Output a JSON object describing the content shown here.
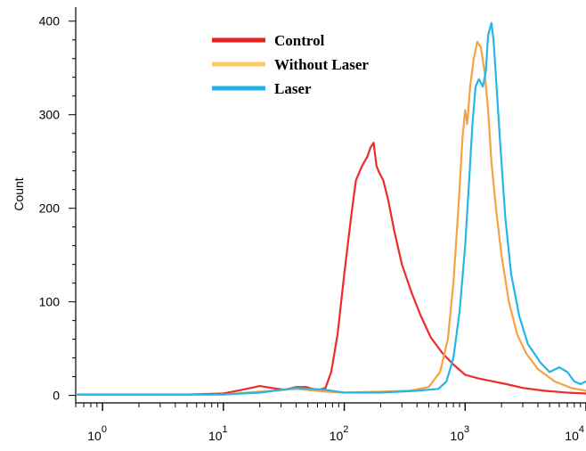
{
  "chart_data": {
    "type": "line",
    "title": "",
    "xlabel": "",
    "ylabel": "Count",
    "x_scale": "log",
    "xlim": [
      0.6,
      10000
    ],
    "ylim": [
      -8,
      415
    ],
    "y_ticks": [
      "0",
      "100",
      "200",
      "300",
      "400"
    ],
    "y_tick_values": [
      0,
      100,
      200,
      300,
      400
    ],
    "x_ticks": [
      {
        "value": 1,
        "base": "10",
        "exp": "0"
      },
      {
        "value": 10,
        "base": "10",
        "exp": "1"
      },
      {
        "value": 100,
        "base": "10",
        "exp": "2"
      },
      {
        "value": 1000,
        "base": "10",
        "exp": "3"
      },
      {
        "value": 10000,
        "base": "10",
        "exp": "4"
      }
    ],
    "grid": false,
    "legend_position": "top-center",
    "series": [
      {
        "name": "Control",
        "color": "#ee2a2a",
        "points": [
          [
            0.6,
            1
          ],
          [
            5,
            1
          ],
          [
            10,
            2
          ],
          [
            13,
            5
          ],
          [
            17,
            8
          ],
          [
            20,
            10
          ],
          [
            25,
            8
          ],
          [
            32,
            6
          ],
          [
            40,
            9
          ],
          [
            48,
            9
          ],
          [
            55,
            7
          ],
          [
            62,
            6
          ],
          [
            70,
            8
          ],
          [
            78,
            25
          ],
          [
            88,
            65
          ],
          [
            100,
            130
          ],
          [
            115,
            195
          ],
          [
            125,
            230
          ],
          [
            140,
            245
          ],
          [
            155,
            255
          ],
          [
            165,
            265
          ],
          [
            175,
            270
          ],
          [
            185,
            245
          ],
          [
            195,
            238
          ],
          [
            210,
            230
          ],
          [
            230,
            210
          ],
          [
            260,
            175
          ],
          [
            300,
            140
          ],
          [
            360,
            110
          ],
          [
            430,
            85
          ],
          [
            520,
            62
          ],
          [
            650,
            45
          ],
          [
            800,
            33
          ],
          [
            1000,
            22
          ],
          [
            1300,
            18
          ],
          [
            1700,
            15
          ],
          [
            2200,
            12
          ],
          [
            3000,
            8
          ],
          [
            4500,
            5
          ],
          [
            7000,
            3
          ],
          [
            10000,
            2
          ]
        ]
      },
      {
        "name": "Without Laser",
        "color": "#f7a240",
        "points": [
          [
            0.6,
            1
          ],
          [
            10,
            1
          ],
          [
            20,
            4
          ],
          [
            40,
            7
          ],
          [
            70,
            4
          ],
          [
            100,
            3
          ],
          [
            200,
            4
          ],
          [
            350,
            5
          ],
          [
            500,
            9
          ],
          [
            620,
            25
          ],
          [
            720,
            60
          ],
          [
            800,
            120
          ],
          [
            880,
            200
          ],
          [
            950,
            275
          ],
          [
            1000,
            305
          ],
          [
            1040,
            290
          ],
          [
            1100,
            330
          ],
          [
            1180,
            360
          ],
          [
            1260,
            378
          ],
          [
            1350,
            372
          ],
          [
            1450,
            345
          ],
          [
            1550,
            305
          ],
          [
            1650,
            250
          ],
          [
            1800,
            200
          ],
          [
            2000,
            150
          ],
          [
            2300,
            100
          ],
          [
            2700,
            65
          ],
          [
            3200,
            45
          ],
          [
            4000,
            28
          ],
          [
            5500,
            15
          ],
          [
            7500,
            8
          ],
          [
            10000,
            5
          ]
        ]
      },
      {
        "name": "Laser",
        "color": "#23b6e6",
        "points": [
          [
            0.6,
            1
          ],
          [
            10,
            1
          ],
          [
            20,
            3
          ],
          [
            40,
            8
          ],
          [
            70,
            6
          ],
          [
            100,
            3
          ],
          [
            200,
            3
          ],
          [
            400,
            5
          ],
          [
            600,
            7
          ],
          [
            700,
            15
          ],
          [
            800,
            40
          ],
          [
            900,
            90
          ],
          [
            1000,
            160
          ],
          [
            1080,
            230
          ],
          [
            1150,
            290
          ],
          [
            1220,
            330
          ],
          [
            1300,
            338
          ],
          [
            1400,
            330
          ],
          [
            1480,
            345
          ],
          [
            1550,
            385
          ],
          [
            1650,
            398
          ],
          [
            1720,
            380
          ],
          [
            1800,
            340
          ],
          [
            1950,
            270
          ],
          [
            2150,
            190
          ],
          [
            2400,
            130
          ],
          [
            2800,
            85
          ],
          [
            3300,
            55
          ],
          [
            4200,
            35
          ],
          [
            5000,
            25
          ],
          [
            6000,
            30
          ],
          [
            7000,
            25
          ],
          [
            8000,
            15
          ],
          [
            9000,
            12
          ],
          [
            10000,
            15
          ]
        ]
      }
    ]
  }
}
